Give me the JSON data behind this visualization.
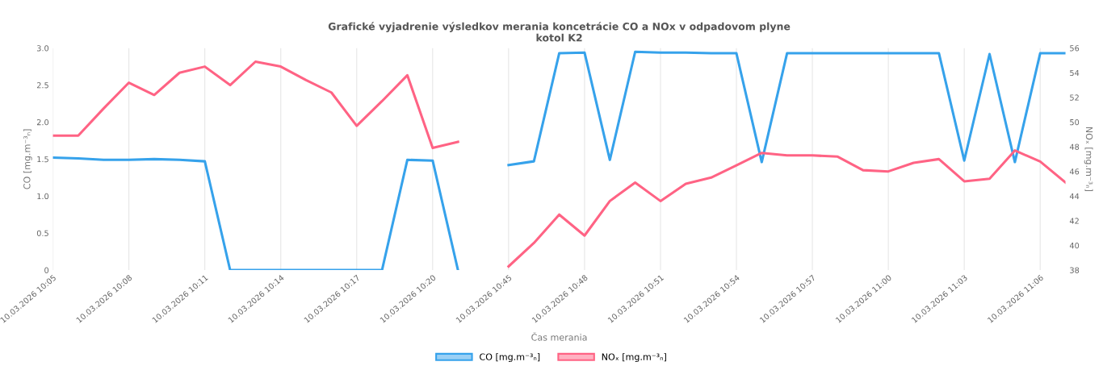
{
  "chart_data": {
    "type": "line",
    "title": "Grafické vyjadrenie výsledkov merania koncetrácie CO a NOx v odpadovom plyne\nkotol K2",
    "xlabel": "Čas merania",
    "ylabel": "CO [mg.m⁻³ₙ]",
    "y2label": "NOₓ [mg.m⁻³ₙ]",
    "categories": [
      "10.03.2026 10:05",
      null,
      null,
      "10.03.2026 10:08",
      null,
      null,
      "10.03.2026 10:11",
      null,
      null,
      "10.03.2026 10:14",
      null,
      null,
      "10.03.2026 10:17",
      null,
      null,
      "10.03.2026 10:20",
      null,
      null,
      "10.03.2026 10:45",
      null,
      null,
      "10.03.2026 10:48",
      null,
      null,
      "10.03.2026 10:51",
      null,
      null,
      "10.03.2026 10:54",
      null,
      null,
      "10.03.2026 10:57",
      null,
      null,
      "10.03.2026 11:00",
      null,
      null,
      "10.03.2026 11:03",
      null,
      null,
      "10.03.2026 11:06",
      null
    ],
    "series": [
      {
        "name": "CO [mg.m⁻³ₙ]",
        "color": "#36a2eb",
        "values": [
          1.52,
          1.51,
          1.49,
          1.49,
          1.5,
          1.49,
          1.47,
          0,
          0,
          0,
          0,
          0,
          0,
          0,
          1.49,
          1.48,
          0,
          null,
          1.42,
          1.47,
          2.93,
          2.94,
          1.49,
          2.95,
          2.94,
          2.94,
          2.93,
          2.93,
          1.46,
          2.93,
          2.93,
          2.93,
          2.93,
          2.93,
          2.93,
          2.93,
          1.48,
          2.92,
          1.46,
          2.93,
          2.93
        ]
      },
      {
        "name": "NOₓ [mg.m⁻³ₙ]",
        "color": "#ff6384",
        "axis": "y2",
        "values": [
          48.9,
          48.9,
          51.1,
          53.2,
          52.2,
          54.0,
          54.5,
          53.0,
          54.9,
          54.5,
          53.4,
          52.4,
          49.7,
          51.7,
          53.8,
          47.9,
          48.4,
          null,
          38.3,
          40.2,
          42.5,
          40.8,
          43.6,
          45.1,
          43.6,
          45.0,
          45.5,
          46.5,
          47.5,
          47.3,
          47.3,
          47.2,
          46.1,
          46.0,
          46.7,
          47.0,
          45.2,
          45.4,
          47.7,
          46.8,
          45.1
        ]
      }
    ],
    "ylim": [
      0,
      3.0
    ],
    "yticks": [
      0,
      0.5,
      {
        "value": 1,
        "label": "1.0"
      },
      1.5,
      {
        "value": 2,
        "label": "2.0"
      },
      2.5,
      {
        "value": 3,
        "label": "3.0"
      }
    ],
    "y2lim": [
      38,
      56
    ],
    "y2ticks": [
      38,
      40,
      42,
      44,
      46,
      48,
      50,
      52,
      54,
      56
    ],
    "grid": "x",
    "legend": "bottom",
    "marker": "none",
    "line_style": "solid"
  }
}
